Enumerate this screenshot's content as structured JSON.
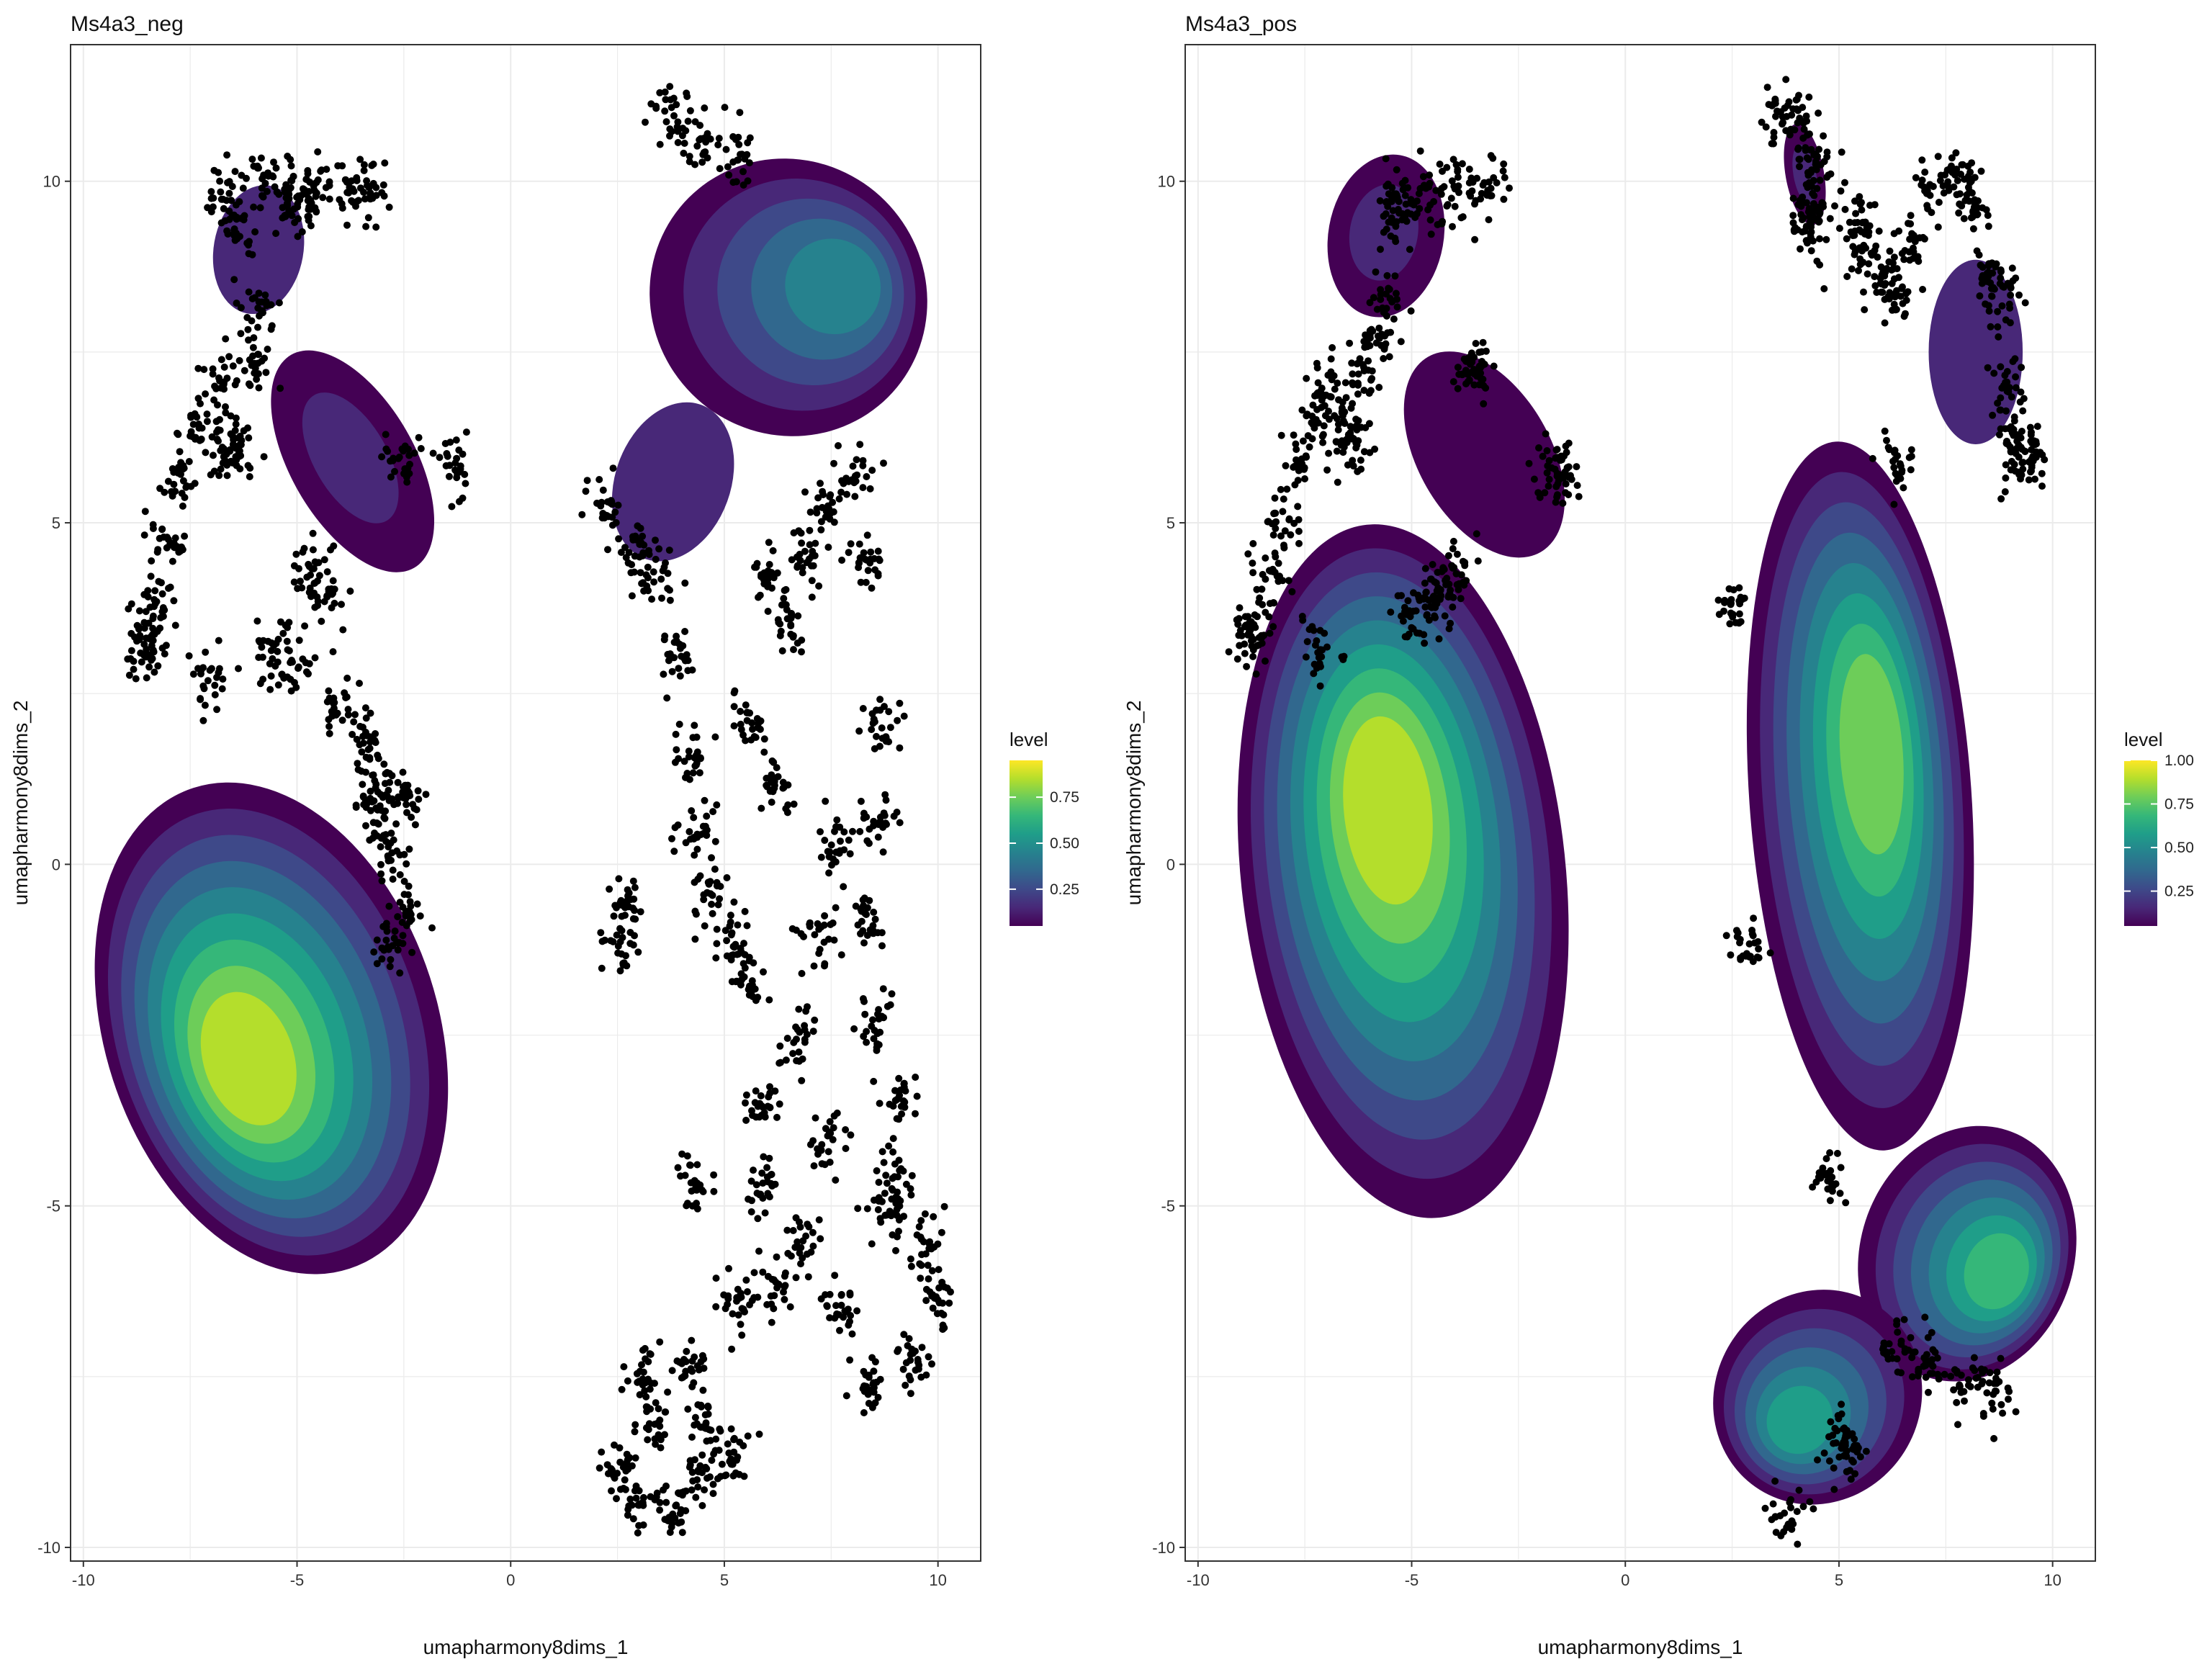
{
  "palette": {
    "viridis": [
      "#440154",
      "#482878",
      "#3E4989",
      "#31688E",
      "#26828E",
      "#1F9E89",
      "#35B779",
      "#6DCD59",
      "#B4DE2C",
      "#FDE725"
    ],
    "points": "#000000",
    "grid": "#ebebeb",
    "panel_border": "#333333"
  },
  "chart_data": [
    {
      "type": "scatter",
      "title": "Ms4a3_neg",
      "xlabel": "umapharmony8dims_1",
      "ylabel": "umapharmony8dims_2",
      "xlim": [
        -10.3,
        11.0
      ],
      "ylim": [
        -10.2,
        12.0
      ],
      "x_ticks": [
        -10,
        -5,
        0,
        5,
        10
      ],
      "y_ticks": [
        -10,
        -5,
        0,
        5,
        10
      ],
      "x_tick_labels": [
        "-10",
        "-5",
        "0",
        "5",
        "10"
      ],
      "y_tick_labels": [
        "-10",
        "-5",
        "0",
        "5",
        "10"
      ],
      "grid": true,
      "legend": {
        "title": "level",
        "position": "right",
        "range": [
          0.05,
          0.95
        ],
        "ticks": [
          0.25,
          0.5,
          0.75
        ],
        "tick_labels": [
          "0.25",
          "0.50",
          "0.75"
        ]
      },
      "scatter_regions": [
        {
          "name": "upper-left strand",
          "points": [
            [
              -6.7,
              9.8
            ],
            [
              -5.8,
              9.9
            ],
            [
              -5.2,
              9.8
            ],
            [
              -4.6,
              9.9
            ],
            [
              -3.8,
              9.9
            ],
            [
              -3.3,
              9.9
            ],
            [
              -5.0,
              9.6
            ],
            [
              -6.4,
              9.2
            ],
            [
              -5.9,
              8.2
            ],
            [
              -6.0,
              7.3
            ],
            [
              -6.8,
              7.0
            ],
            [
              -7.3,
              6.4
            ],
            [
              -7.7,
              5.6
            ],
            [
              -8.0,
              4.7
            ],
            [
              -8.3,
              3.9
            ],
            [
              -8.6,
              3.1
            ],
            [
              -8.4,
              3.4
            ],
            [
              -6.7,
              6.0
            ],
            [
              -6.4,
              6.2
            ],
            [
              -4.6,
              4.3
            ],
            [
              -4.3,
              4.0
            ],
            [
              -2.6,
              5.9
            ],
            [
              -1.3,
              5.8
            ],
            [
              -7.1,
              2.8
            ],
            [
              -5.6,
              3.2
            ],
            [
              -5.1,
              2.9
            ],
            [
              -4.1,
              2.3
            ],
            [
              -3.4,
              1.8
            ],
            [
              -3.0,
              1.2
            ],
            [
              -3.2,
              0.9
            ],
            [
              -2.8,
              0.2
            ],
            [
              -2.5,
              -0.6
            ],
            [
              -2.8,
              -1.2
            ],
            [
              -2.4,
              0.9
            ]
          ]
        },
        {
          "name": "right main cloud",
          "points": [
            [
              3.7,
              11.0
            ],
            [
              4.4,
              10.6
            ],
            [
              5.3,
              10.4
            ],
            [
              2.2,
              5.3
            ],
            [
              2.8,
              4.6
            ],
            [
              3.4,
              4.2
            ],
            [
              3.9,
              3.0
            ],
            [
              4.3,
              1.6
            ],
            [
              4.4,
              0.4
            ],
            [
              4.7,
              -0.4
            ],
            [
              5.2,
              -1.2
            ],
            [
              5.6,
              -1.7
            ],
            [
              6.2,
              1.2
            ],
            [
              6.5,
              3.5
            ],
            [
              6.9,
              4.5
            ],
            [
              7.4,
              5.2
            ],
            [
              8.0,
              5.7
            ],
            [
              8.3,
              4.4
            ],
            [
              8.7,
              2.1
            ],
            [
              8.6,
              0.6
            ],
            [
              8.3,
              -0.8
            ],
            [
              8.6,
              -2.3
            ],
            [
              9.1,
              -3.4
            ],
            [
              8.9,
              -4.6
            ],
            [
              9.6,
              -5.6
            ],
            [
              10.0,
              -6.4
            ],
            [
              9.4,
              -7.3
            ],
            [
              8.4,
              -7.6
            ],
            [
              7.6,
              -6.6
            ],
            [
              6.9,
              -5.6
            ],
            [
              6.1,
              -6.2
            ],
            [
              5.2,
              -6.5
            ],
            [
              4.2,
              -7.4
            ],
            [
              3.3,
              -8.2
            ],
            [
              2.6,
              -8.8
            ],
            [
              3.0,
              -9.3
            ],
            [
              3.8,
              -9.5
            ],
            [
              4.4,
              -9.0
            ],
            [
              5.2,
              -8.7
            ],
            [
              2.7,
              -0.5
            ],
            [
              2.6,
              -1.1
            ],
            [
              4.3,
              -4.7
            ],
            [
              5.8,
              -3.5
            ],
            [
              6.7,
              -2.6
            ],
            [
              7.2,
              -1.1
            ],
            [
              7.6,
              0.3
            ],
            [
              5.6,
              2.1
            ],
            [
              6.0,
              4.2
            ],
            [
              3.2,
              -7.4
            ],
            [
              4.6,
              -8.2
            ],
            [
              8.8,
              -5.0
            ],
            [
              7.4,
              -4.1
            ],
            [
              5.9,
              -4.6
            ]
          ]
        }
      ],
      "density_clusters": [
        {
          "name": "large-left",
          "peak_level": 0.95,
          "peak": [
            -6.2,
            -2.9
          ],
          "center": [
            -5.6,
            -2.4
          ],
          "rx": 3.9,
          "ry": 3.7,
          "rotation_deg": 18
        },
        {
          "name": "upper-left",
          "peak_level": 0.12,
          "peak": [
            -5.9,
            9.1
          ],
          "center": [
            -5.9,
            9.0
          ],
          "rx": 1.05,
          "ry": 0.95,
          "rotation_deg": -10
        },
        {
          "name": "mid-left",
          "peak_level": 0.22,
          "peak": [
            -3.8,
            6.0
          ],
          "center": [
            -3.7,
            5.9
          ],
          "rx": 1.45,
          "ry": 1.8,
          "rotation_deg": 30
        },
        {
          "name": "right-middle",
          "peak_level": 0.12,
          "peak": [
            3.8,
            5.6
          ],
          "center": [
            3.8,
            5.6
          ],
          "rx": 1.35,
          "ry": 1.2,
          "rotation_deg": -20
        },
        {
          "name": "upper-right",
          "peak_level": 0.48,
          "peak": [
            7.8,
            8.5
          ],
          "center": [
            6.5,
            8.3
          ],
          "rx": 3.3,
          "ry": 2.0,
          "rotation_deg": -45
        }
      ]
    },
    {
      "type": "scatter",
      "title": "Ms4a3_pos",
      "xlabel": "umapharmony8dims_1",
      "ylabel": "umapharmony8dims_2",
      "xlim": [
        -10.3,
        11.0
      ],
      "ylim": [
        -10.2,
        12.0
      ],
      "x_ticks": [
        -10,
        -5,
        0,
        5,
        10
      ],
      "y_ticks": [
        -10,
        -5,
        0,
        5,
        10
      ],
      "x_tick_labels": [
        "-10",
        "-5",
        "0",
        "5",
        "10"
      ],
      "y_tick_labels": [
        "-10",
        "-5",
        "0",
        "5",
        "10"
      ],
      "grid": true,
      "legend": {
        "title": "level",
        "position": "right",
        "range": [
          0.05,
          1.0
        ],
        "ticks": [
          0.25,
          0.5,
          0.75,
          1.0
        ],
        "tick_labels": [
          "0.25",
          "0.50",
          "0.75",
          "1.00"
        ]
      },
      "scatter_regions": [
        {
          "name": "upper-left strand",
          "points": [
            [
              -5.5,
              9.8
            ],
            [
              -4.6,
              9.8
            ],
            [
              -3.9,
              9.9
            ],
            [
              -3.3,
              9.9
            ],
            [
              -5.2,
              9.5
            ],
            [
              -5.6,
              8.3
            ],
            [
              -5.8,
              7.6
            ],
            [
              -6.2,
              7.2
            ],
            [
              -6.9,
              6.9
            ],
            [
              -7.2,
              6.5
            ],
            [
              -7.6,
              5.9
            ],
            [
              -8.0,
              5.0
            ],
            [
              -8.3,
              4.2
            ],
            [
              -8.6,
              3.5
            ],
            [
              -6.6,
              6.4
            ],
            [
              -6.3,
              6.1
            ],
            [
              -4.2,
              4.0
            ],
            [
              -3.9,
              4.4
            ],
            [
              -3.6,
              7.2
            ],
            [
              -3.4,
              7.3
            ],
            [
              -1.4,
              5.8
            ],
            [
              -1.6,
              5.6
            ],
            [
              -7.2,
              3.2
            ],
            [
              -8.8,
              3.3
            ],
            [
              -5.0,
              3.6
            ],
            [
              -4.6,
              3.8
            ]
          ]
        },
        {
          "name": "right clusters",
          "points": [
            [
              3.6,
              11.0
            ],
            [
              4.2,
              10.9
            ],
            [
              4.4,
              10.3
            ],
            [
              4.5,
              9.8
            ],
            [
              4.2,
              9.5
            ],
            [
              4.4,
              9.2
            ],
            [
              5.5,
              9.4
            ],
            [
              5.6,
              9.0
            ],
            [
              6.0,
              8.6
            ],
            [
              6.3,
              8.3
            ],
            [
              6.6,
              9.1
            ],
            [
              7.2,
              9.9
            ],
            [
              7.8,
              10.0
            ],
            [
              8.2,
              9.6
            ],
            [
              8.5,
              8.6
            ],
            [
              8.9,
              8.3
            ],
            [
              9.0,
              7.0
            ],
            [
              9.1,
              6.2
            ],
            [
              9.5,
              6.1
            ],
            [
              9.2,
              5.8
            ],
            [
              6.4,
              5.9
            ],
            [
              2.6,
              3.8
            ],
            [
              2.8,
              -1.3
            ],
            [
              4.8,
              -4.6
            ],
            [
              3.8,
              -9.5
            ],
            [
              5.1,
              -8.4
            ],
            [
              6.4,
              -7.1
            ],
            [
              7.1,
              -7.3
            ],
            [
              8.0,
              -7.6
            ],
            [
              8.6,
              -7.7
            ],
            [
              5.2,
              -8.5
            ]
          ]
        }
      ],
      "density_clusters": [
        {
          "name": "left",
          "peak_level": 0.92,
          "peak": [
            -5.6,
            0.9
          ],
          "center": [
            -5.2,
            -0.1
          ],
          "rx": 3.8,
          "ry": 5.1,
          "rotation_deg": 6
        },
        {
          "name": "upper-left",
          "peak_level": 0.18,
          "peak": [
            -5.7,
            9.3
          ],
          "center": [
            -5.6,
            9.2
          ],
          "rx": 1.35,
          "ry": 1.2,
          "rotation_deg": -10
        },
        {
          "name": "mid-left",
          "peak_level": 0.1,
          "peak": [
            -3.3,
            6.0
          ],
          "center": [
            -3.3,
            6.0
          ],
          "rx": 1.55,
          "ry": 1.65,
          "rotation_deg": 30
        },
        {
          "name": "right-main",
          "peak_level": 0.82,
          "peak": [
            5.8,
            1.7
          ],
          "center": [
            5.5,
            1.0
          ],
          "rx": 2.6,
          "ry": 5.2,
          "rotation_deg": 4
        },
        {
          "name": "right-lower",
          "peak_level": 0.68,
          "peak": [
            8.8,
            -6.0
          ],
          "center": [
            8.0,
            -5.7
          ],
          "rx": 2.5,
          "ry": 1.9,
          "rotation_deg": -18
        },
        {
          "name": "bottom",
          "peak_level": 0.62,
          "peak": [
            4.0,
            -8.2
          ],
          "center": [
            4.5,
            -7.8
          ],
          "rx": 2.4,
          "ry": 1.6,
          "rotation_deg": -32
        },
        {
          "name": "far-upper-right",
          "peak_level": 0.16,
          "peak": [
            4.2,
            10.1
          ],
          "center": [
            4.2,
            10.1
          ],
          "rx": 0.45,
          "ry": 0.75,
          "rotation_deg": 10
        },
        {
          "name": "upper-right",
          "peak_level": 0.12,
          "peak": [
            8.2,
            7.6
          ],
          "center": [
            8.2,
            7.5
          ],
          "rx": 1.1,
          "ry": 1.35,
          "rotation_deg": 0
        }
      ]
    }
  ]
}
